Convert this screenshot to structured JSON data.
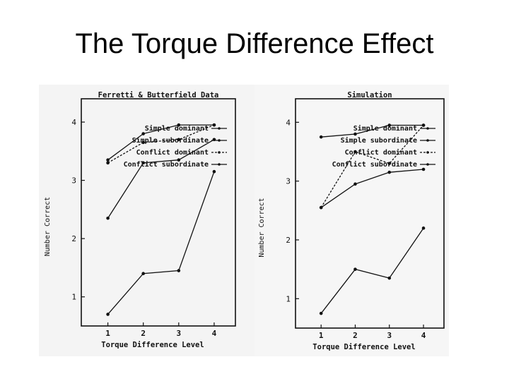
{
  "slide": {
    "title": "The Torque Difference Effect"
  },
  "chart_data": [
    {
      "type": "line",
      "title": "Ferretti & Butterfield Data",
      "xlabel": "Torque Difference Level",
      "ylabel": "Number Correct",
      "x": [
        1,
        2,
        3,
        4
      ],
      "ylim": [
        0.5,
        4.4
      ],
      "yticks": [
        1,
        2,
        3,
        4
      ],
      "legend_position": "top-right",
      "series": [
        {
          "name": "Simple dominant",
          "values": [
            3.35,
            3.8,
            3.95,
            3.95
          ]
        },
        {
          "name": "Simple subordinate",
          "values": [
            2.35,
            3.3,
            3.35,
            3.7
          ]
        },
        {
          "name": "Conflict dominant",
          "values": [
            3.3,
            3.65,
            3.7,
            3.95
          ]
        },
        {
          "name": "Conflict subordinate",
          "values": [
            0.7,
            1.4,
            1.45,
            3.15
          ]
        }
      ]
    },
    {
      "type": "line",
      "title": "Simulation",
      "xlabel": "Torque Difference Level",
      "ylabel": "Number Correct",
      "x": [
        1,
        2,
        3,
        4
      ],
      "ylim": [
        0.5,
        4.4
      ],
      "yticks": [
        1,
        2,
        3,
        4
      ],
      "legend_position": "top-right",
      "series": [
        {
          "name": "Simple dominant",
          "values": [
            3.75,
            3.8,
            3.95,
            3.95
          ]
        },
        {
          "name": "Simple subordinate",
          "values": [
            2.55,
            2.95,
            3.15,
            3.2
          ]
        },
        {
          "name": "Conflict dominant",
          "values": [
            2.55,
            3.5,
            3.3,
            3.95
          ]
        },
        {
          "name": "Conflict subordinate",
          "values": [
            0.75,
            1.5,
            1.35,
            2.2
          ]
        }
      ]
    }
  ]
}
